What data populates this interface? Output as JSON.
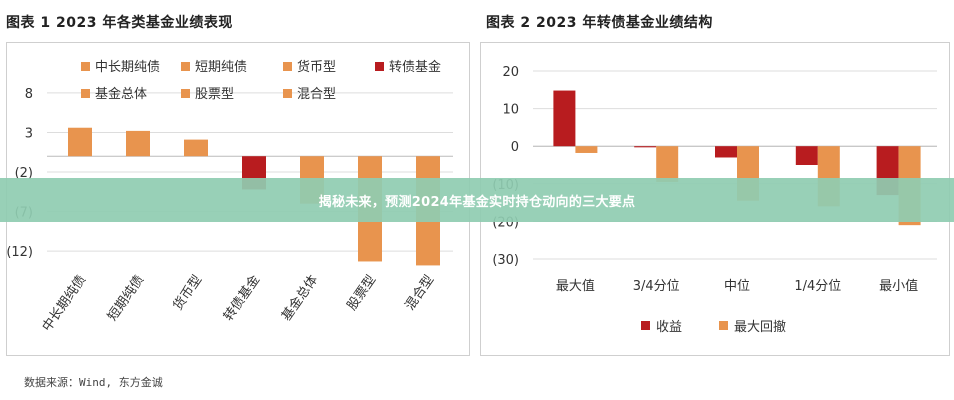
{
  "figure1": {
    "title": "图表 1  2023 年各类基金业绩表现"
  },
  "figure2": {
    "title": "图表 2  2023 年转债基金业绩结构"
  },
  "banner": {
    "text": "揭秘未来，预测2024年基金实时持仓动向的三大要点"
  },
  "source": {
    "text": "数据来源：Wind, 东方金诚"
  },
  "colors": {
    "orange": "#E8944E",
    "darkred": "#B81C1F",
    "grid": "#DDDDDD"
  },
  "chart_data": [
    {
      "type": "bar",
      "title": "图表 1  2023 年各类基金业绩表现",
      "categories": [
        "中长期纯债",
        "短期纯债",
        "货币型",
        "转债基金",
        "基金总体",
        "股票型",
        "混合型"
      ],
      "values": [
        3.6,
        3.2,
        2.1,
        -4.2,
        -6.0,
        -13.3,
        -13.8
      ],
      "colors": [
        "#E8944E",
        "#E8944E",
        "#E8944E",
        "#B81C1F",
        "#E8944E",
        "#E8944E",
        "#E8944E"
      ],
      "yticks": [
        "8",
        "3",
        "(2)",
        "(7)",
        "(12)"
      ],
      "ytick_values": [
        8,
        3,
        -2,
        -7,
        -12
      ],
      "ylim": [
        -14,
        9
      ],
      "legend": [
        "中长期纯债",
        "短期纯债",
        "货币型",
        "转债基金",
        "基金总体",
        "股票型",
        "混合型"
      ],
      "legend_colors": [
        "#E8944E",
        "#E8944E",
        "#E8944E",
        "#B81C1F",
        "#E8944E",
        "#E8944E",
        "#E8944E"
      ],
      "legend_position": "top-right",
      "grid": true
    },
    {
      "type": "bar",
      "title": "图表 2  2023 年转债基金业绩结构",
      "categories": [
        "最大值",
        "3/4分位",
        "中位",
        "1/4分位",
        "最小值"
      ],
      "series": [
        {
          "name": "收益",
          "color": "#B81C1F",
          "values": [
            14.8,
            -0.3,
            -3.0,
            -5.0,
            -13.0
          ]
        },
        {
          "name": "最大回撤",
          "color": "#E8944E",
          "values": [
            -1.8,
            -9.5,
            -14.5,
            -16.0,
            -21.0
          ]
        }
      ],
      "yticks": [
        "20",
        "10",
        "0",
        "(10)",
        "(20)",
        "(30)"
      ],
      "ytick_values": [
        20,
        10,
        0,
        -10,
        -20,
        -30
      ],
      "ylim": [
        -30,
        20
      ],
      "legend_position": "bottom",
      "grid": true
    }
  ]
}
